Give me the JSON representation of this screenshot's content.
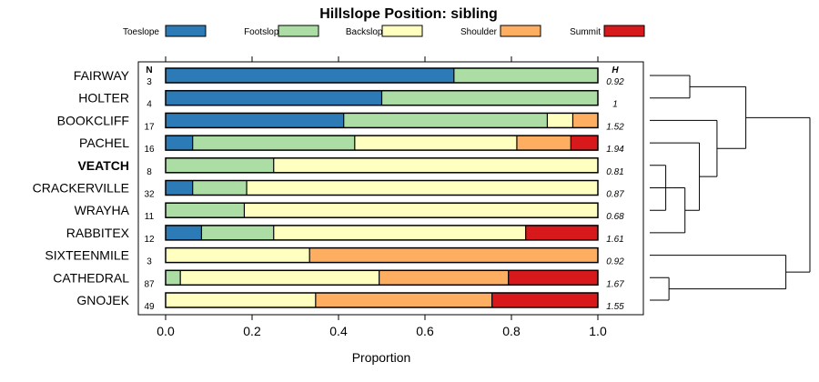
{
  "chart_data": {
    "type": "bar",
    "stacked": true,
    "orientation": "horizontal",
    "title": "Hillslope Position: sibling",
    "xlabel": "Proportion",
    "xlim": [
      0,
      1
    ],
    "xticks": [
      "0.0",
      "0.2",
      "0.4",
      "0.6",
      "0.8",
      "1.0"
    ],
    "n_header": "N",
    "h_header": "H",
    "legend_position": "top",
    "series": [
      {
        "name": "Toeslope",
        "color": "#2c7bb6"
      },
      {
        "name": "Footslope",
        "color": "#abdda4"
      },
      {
        "name": "Backslope",
        "color": "#ffffbf"
      },
      {
        "name": "Shoulder",
        "color": "#fdae61"
      },
      {
        "name": "Summit",
        "color": "#d7191c"
      }
    ],
    "rows": [
      {
        "label": "FAIRWAY",
        "bold": false,
        "n": "3",
        "h": "0.92",
        "values": [
          0.667,
          0.333,
          0,
          0,
          0
        ]
      },
      {
        "label": "HOLTER",
        "bold": false,
        "n": "4",
        "h": "1",
        "values": [
          0.5,
          0.5,
          0,
          0,
          0
        ]
      },
      {
        "label": "BOOKCLIFF",
        "bold": false,
        "n": "17",
        "h": "1.52",
        "values": [
          0.412,
          0.471,
          0.059,
          0.059,
          0
        ]
      },
      {
        "label": "PACHEL",
        "bold": false,
        "n": "16",
        "h": "1.94",
        "values": [
          0.0625,
          0.375,
          0.375,
          0.125,
          0.0625
        ]
      },
      {
        "label": "VEATCH",
        "bold": true,
        "n": "8",
        "h": "0.81",
        "values": [
          0,
          0.25,
          0.75,
          0,
          0
        ]
      },
      {
        "label": "CRACKERVILLE",
        "bold": false,
        "n": "32",
        "h": "0.87",
        "values": [
          0.0625,
          0.125,
          0.8125,
          0,
          0
        ]
      },
      {
        "label": "WRAYHA",
        "bold": false,
        "n": "11",
        "h": "0.68",
        "values": [
          0,
          0.182,
          0.818,
          0,
          0
        ]
      },
      {
        "label": "RABBITEX",
        "bold": false,
        "n": "12",
        "h": "1.61",
        "values": [
          0.083,
          0.167,
          0.583,
          0,
          0.167
        ]
      },
      {
        "label": "SIXTEENMILE",
        "bold": false,
        "n": "3",
        "h": "0.92",
        "values": [
          0,
          0,
          0.333,
          0.667,
          0
        ]
      },
      {
        "label": "CATHEDRAL",
        "bold": false,
        "n": "87",
        "h": "1.67",
        "values": [
          0,
          0.034,
          0.46,
          0.299,
          0.207
        ]
      },
      {
        "label": "GNOJEK",
        "bold": false,
        "n": "49",
        "h": "1.55",
        "values": [
          0,
          0,
          0.347,
          0.408,
          0.245
        ]
      }
    ],
    "dendrogram": {
      "merges": [
        {
          "a": 0,
          "b": 1,
          "height": 0.25
        },
        {
          "a": 4,
          "b": 6,
          "height": 0.1
        },
        {
          "a": 5,
          "b": "m2",
          "height": 0.14
        },
        {
          "a": "m3",
          "b": 7,
          "height": 0.22
        },
        {
          "a": 3,
          "b": "m4",
          "height": 0.31
        },
        {
          "a": 2,
          "b": "m5",
          "height": 0.42
        },
        {
          "a": "m1",
          "b": "m6",
          "height": 0.6
        },
        {
          "a": 9,
          "b": 10,
          "height": 0.12
        },
        {
          "a": 8,
          "b": "m8",
          "height": 0.85
        },
        {
          "a": "m7",
          "b": "m9",
          "height": 1.0
        }
      ]
    }
  }
}
